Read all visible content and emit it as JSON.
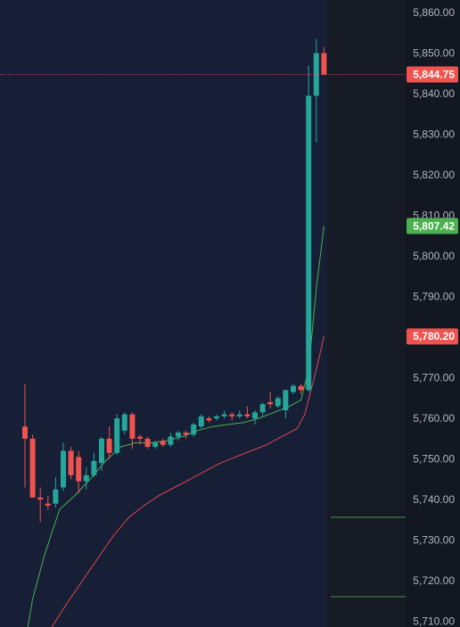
{
  "colors": {
    "background_plot": "#161f36",
    "background_right": "#161a25",
    "axis_background": "#131722",
    "up": "#26a69a",
    "down": "#ef5350",
    "ma_fast": "#4caf50",
    "ma_slow": "#e0474c",
    "price_line": "#ef5350",
    "tick_text": "#b2b5be"
  },
  "chart_data": {
    "type": "candlestick",
    "y_ticks": [
      "5,860.00",
      "5,850.00",
      "5,840.00",
      "5,830.00",
      "5,820.00",
      "5,810.00",
      "5,800.00",
      "5,790.00",
      "5,780.00",
      "5,770.00",
      "5,760.00",
      "5,750.00",
      "5,740.00",
      "5,730.00",
      "5,720.00",
      "5,710.00"
    ],
    "y_tick_values": [
      5860,
      5850,
      5840,
      5830,
      5820,
      5810,
      5800,
      5790,
      5780,
      5770,
      5760,
      5750,
      5740,
      5730,
      5720,
      5710
    ],
    "ylim": [
      5708.6,
      5863.1
    ],
    "candles": [
      {
        "o": 5758.0,
        "h": 5768.5,
        "l": 5743.0,
        "c": 5755.0
      },
      {
        "o": 5755.0,
        "h": 5756.0,
        "l": 5740.5,
        "c": 5740.5
      },
      {
        "o": 5740.5,
        "h": 5743.0,
        "l": 5734.5,
        "c": 5740.0
      },
      {
        "o": 5739.0,
        "h": 5741.0,
        "l": 5737.5,
        "c": 5738.5
      },
      {
        "o": 5739.0,
        "h": 5745.5,
        "l": 5738.0,
        "c": 5742.5
      },
      {
        "o": 5743.0,
        "h": 5754.0,
        "l": 5742.0,
        "c": 5752.0
      },
      {
        "o": 5752.0,
        "h": 5753.0,
        "l": 5745.0,
        "c": 5746.0
      },
      {
        "o": 5750.5,
        "h": 5752.0,
        "l": 5741.5,
        "c": 5744.5
      },
      {
        "o": 5744.5,
        "h": 5748.0,
        "l": 5742.5,
        "c": 5746.0
      },
      {
        "o": 5746.0,
        "h": 5751.5,
        "l": 5745.5,
        "c": 5749.5
      },
      {
        "o": 5749.0,
        "h": 5755.5,
        "l": 5747.0,
        "c": 5755.0
      },
      {
        "o": 5755.0,
        "h": 5758.0,
        "l": 5750.0,
        "c": 5751.5
      },
      {
        "o": 5751.5,
        "h": 5761.0,
        "l": 5751.0,
        "c": 5760.0
      },
      {
        "o": 5757.0,
        "h": 5761.5,
        "l": 5756.0,
        "c": 5761.0
      },
      {
        "o": 5761.0,
        "h": 5761.5,
        "l": 5752.5,
        "c": 5755.0
      },
      {
        "o": 5755.5,
        "h": 5756.0,
        "l": 5753.5,
        "c": 5755.0
      },
      {
        "o": 5755.0,
        "h": 5755.5,
        "l": 5752.5,
        "c": 5753.0
      },
      {
        "o": 5753.0,
        "h": 5754.5,
        "l": 5752.5,
        "c": 5754.0
      },
      {
        "o": 5754.5,
        "h": 5755.0,
        "l": 5753.0,
        "c": 5753.5
      },
      {
        "o": 5753.5,
        "h": 5756.5,
        "l": 5753.0,
        "c": 5755.5
      },
      {
        "o": 5755.5,
        "h": 5757.0,
        "l": 5754.5,
        "c": 5756.5
      },
      {
        "o": 5756.5,
        "h": 5757.0,
        "l": 5755.0,
        "c": 5756.0
      },
      {
        "o": 5756.0,
        "h": 5759.0,
        "l": 5755.5,
        "c": 5758.5
      },
      {
        "o": 5758.0,
        "h": 5761.0,
        "l": 5757.5,
        "c": 5760.5
      },
      {
        "o": 5760.0,
        "h": 5760.5,
        "l": 5759.0,
        "c": 5759.5
      },
      {
        "o": 5760.0,
        "h": 5761.0,
        "l": 5759.5,
        "c": 5760.5
      },
      {
        "o": 5760.5,
        "h": 5762.0,
        "l": 5760.0,
        "c": 5761.0
      },
      {
        "o": 5761.0,
        "h": 5761.5,
        "l": 5759.5,
        "c": 5760.5
      },
      {
        "o": 5760.5,
        "h": 5762.0,
        "l": 5760.0,
        "c": 5761.0
      },
      {
        "o": 5761.0,
        "h": 5763.0,
        "l": 5760.0,
        "c": 5760.5
      },
      {
        "o": 5760.0,
        "h": 5762.0,
        "l": 5758.5,
        "c": 5761.5
      },
      {
        "o": 5761.5,
        "h": 5764.0,
        "l": 5760.5,
        "c": 5763.5
      },
      {
        "o": 5764.0,
        "h": 5766.5,
        "l": 5762.5,
        "c": 5763.5
      },
      {
        "o": 5763.0,
        "h": 5765.5,
        "l": 5762.5,
        "c": 5765.0
      },
      {
        "o": 5762.0,
        "h": 5767.0,
        "l": 5760.0,
        "c": 5767.0
      },
      {
        "o": 5766.5,
        "h": 5768.5,
        "l": 5766.0,
        "c": 5768.0
      },
      {
        "o": 5768.0,
        "h": 5768.5,
        "l": 5766.0,
        "c": 5767.0
      },
      {
        "o": 5767.0,
        "h": 5847.0,
        "l": 5766.5,
        "c": 5839.5
      },
      {
        "o": 5839.5,
        "h": 5853.5,
        "l": 5828.0,
        "c": 5850.0
      },
      {
        "o": 5850.0,
        "h": 5851.5,
        "l": 5844.5,
        "c": 5844.75
      }
    ],
    "ma_fast": [
      {
        "i": 0.3,
        "y": 5707.8
      },
      {
        "i": 1.0,
        "y": 5715.5
      },
      {
        "i": 2.5,
        "y": 5726.0
      },
      {
        "i": 4.5,
        "y": 5737.5
      },
      {
        "i": 6.5,
        "y": 5741.0
      },
      {
        "i": 8.5,
        "y": 5745.0
      },
      {
        "i": 10.5,
        "y": 5749.5
      },
      {
        "i": 12.5,
        "y": 5753.0
      },
      {
        "i": 14.5,
        "y": 5754.0
      },
      {
        "i": 16.5,
        "y": 5754.0
      },
      {
        "i": 18.5,
        "y": 5754.5
      },
      {
        "i": 20.5,
        "y": 5755.5
      },
      {
        "i": 22.5,
        "y": 5757.0
      },
      {
        "i": 24.5,
        "y": 5758.0
      },
      {
        "i": 26.5,
        "y": 5758.5
      },
      {
        "i": 28.5,
        "y": 5759.0
      },
      {
        "i": 30.5,
        "y": 5760.0
      },
      {
        "i": 32.5,
        "y": 5761.5
      },
      {
        "i": 34.5,
        "y": 5763.0
      },
      {
        "i": 36.0,
        "y": 5764.5
      },
      {
        "i": 37.0,
        "y": 5772.0
      },
      {
        "i": 38.0,
        "y": 5792.0
      },
      {
        "i": 39.0,
        "y": 5807.42
      }
    ],
    "ma_slow": [
      {
        "i": 3.5,
        "y": 5708.6
      },
      {
        "i": 5.5,
        "y": 5714.5
      },
      {
        "i": 7.5,
        "y": 5720.0
      },
      {
        "i": 9.5,
        "y": 5725.5
      },
      {
        "i": 11.5,
        "y": 5731.0
      },
      {
        "i": 13.5,
        "y": 5735.5
      },
      {
        "i": 15.5,
        "y": 5738.5
      },
      {
        "i": 17.5,
        "y": 5741.0
      },
      {
        "i": 19.5,
        "y": 5743.0
      },
      {
        "i": 21.5,
        "y": 5745.0
      },
      {
        "i": 23.5,
        "y": 5747.0
      },
      {
        "i": 25.5,
        "y": 5749.0
      },
      {
        "i": 27.5,
        "y": 5750.5
      },
      {
        "i": 29.5,
        "y": 5752.0
      },
      {
        "i": 31.5,
        "y": 5753.5
      },
      {
        "i": 33.5,
        "y": 5755.5
      },
      {
        "i": 35.5,
        "y": 5757.5
      },
      {
        "i": 36.5,
        "y": 5761.0
      },
      {
        "i": 38.0,
        "y": 5772.0
      },
      {
        "i": 39.0,
        "y": 5780.2
      }
    ],
    "last_price": 5844.75,
    "last_price_label": "5,844.75",
    "ma_fast_label": "5,807.42",
    "ma_slow_label": "5,780.20",
    "ma_fast_badge_color": "#4caf50",
    "ma_slow_badge_color": "#ef5350",
    "price_badge_color": "#ef5350"
  }
}
